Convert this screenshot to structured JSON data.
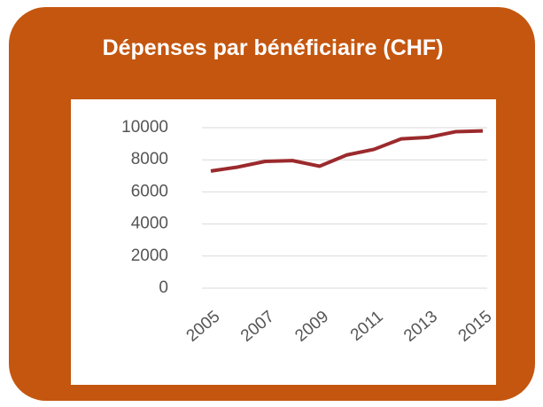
{
  "chart_data": {
    "type": "line",
    "title": "Dépenses par bénéficiaire (CHF)",
    "x": [
      2005,
      2006,
      2007,
      2008,
      2009,
      2010,
      2011,
      2012,
      2013,
      2014,
      2015
    ],
    "series": [
      {
        "name": "Dépenses par bénéficiaire",
        "color": "#9b2a2d",
        "values": [
          7300,
          7550,
          7900,
          7950,
          7600,
          8300,
          8650,
          9300,
          9400,
          9750,
          9800
        ]
      }
    ],
    "xlim": [
      2005,
      2015
    ],
    "xticks": [
      2005,
      2007,
      2009,
      2011,
      2013,
      2015
    ],
    "ylim": [
      0,
      10000
    ],
    "yticks": [
      0,
      2000,
      4000,
      6000,
      8000,
      10000
    ],
    "grid": true
  }
}
